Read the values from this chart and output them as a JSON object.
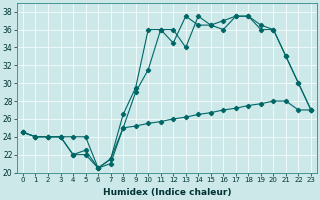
{
  "xlabel": "Humidex (Indice chaleur)",
  "ylabel": "",
  "background_color": "#cce8e8",
  "line_color": "#006666",
  "xlim": [
    -0.5,
    23.5
  ],
  "ylim": [
    20,
    39
  ],
  "yticks": [
    20,
    22,
    24,
    26,
    28,
    30,
    32,
    34,
    36,
    38
  ],
  "xticks": [
    0,
    1,
    2,
    3,
    4,
    5,
    6,
    7,
    8,
    9,
    10,
    11,
    12,
    13,
    14,
    15,
    16,
    17,
    18,
    19,
    20,
    21,
    22,
    23
  ],
  "series1_x": [
    0,
    1,
    2,
    3,
    4,
    5,
    6,
    7,
    8,
    9,
    10,
    11,
    12,
    13,
    14,
    15,
    16,
    17,
    18,
    19,
    20,
    21,
    22,
    23
  ],
  "series1_y": [
    24.5,
    24.0,
    24.0,
    24.0,
    24.0,
    24.0,
    20.5,
    21.0,
    25.0,
    25.2,
    25.5,
    25.7,
    26.0,
    26.2,
    26.5,
    26.7,
    27.0,
    27.2,
    27.5,
    27.7,
    28.0,
    28.0,
    27.0,
    27.0
  ],
  "series2_x": [
    0,
    1,
    2,
    3,
    4,
    5,
    6,
    7,
    8,
    9,
    10,
    11,
    12,
    13,
    14,
    15,
    16,
    17,
    18,
    19,
    20,
    21,
    22,
    23
  ],
  "series2_y": [
    24.5,
    24.0,
    24.0,
    24.0,
    22.0,
    22.0,
    20.5,
    21.5,
    25.0,
    29.0,
    31.5,
    36.0,
    36.0,
    34.0,
    37.5,
    36.5,
    36.0,
    37.5,
    37.5,
    36.5,
    36.0,
    33.0,
    30.0,
    27.0
  ],
  "series3_x": [
    0,
    1,
    2,
    3,
    4,
    5,
    6,
    7,
    8,
    9,
    10,
    11,
    12,
    13,
    14,
    15,
    16,
    17,
    18,
    19,
    20,
    21,
    22,
    23
  ],
  "series3_y": [
    24.5,
    24.0,
    24.0,
    24.0,
    22.0,
    22.5,
    20.5,
    21.5,
    26.5,
    29.5,
    36.0,
    36.0,
    34.5,
    37.5,
    36.5,
    36.5,
    37.0,
    37.5,
    37.5,
    36.0,
    36.0,
    33.0,
    30.0,
    27.0
  ]
}
